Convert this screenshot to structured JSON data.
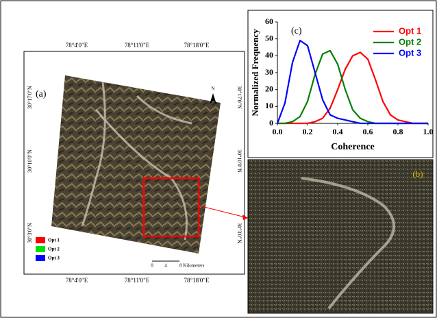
{
  "chart_data": {
    "type": "line",
    "panel_label": "(c)",
    "x_label": "Coherence",
    "y_label": "Normalized Frequency",
    "x": [
      0,
      0.05,
      0.1,
      0.15,
      0.2,
      0.25,
      0.3,
      0.35,
      0.4,
      0.45,
      0.5,
      0.55,
      0.6,
      0.65,
      0.7,
      0.75,
      0.8,
      0.85,
      0.9,
      0.95,
      1.0
    ],
    "series": [
      {
        "name": "Opt 1",
        "color": "#ff0000",
        "values": [
          0,
          0,
          0,
          0,
          0,
          1,
          3,
          9,
          20,
          32,
          40,
          42,
          38,
          26,
          13,
          5,
          2,
          1,
          0,
          0,
          0
        ]
      },
      {
        "name": "Opt 2",
        "color": "#008000",
        "values": [
          0,
          0,
          1,
          4,
          13,
          29,
          41,
          43,
          35,
          20,
          8,
          3,
          1,
          0,
          0,
          0,
          0,
          0,
          0,
          0,
          0
        ]
      },
      {
        "name": "Opt 3",
        "color": "#0000ff",
        "values": [
          0,
          12,
          36,
          49,
          46,
          30,
          14,
          5,
          3,
          2,
          1,
          0,
          0,
          0,
          0,
          0,
          0,
          0,
          0,
          0,
          0
        ]
      }
    ],
    "xlim": [
      0,
      1
    ],
    "ylim": [
      0,
      60
    ],
    "xticks": [
      {
        "value": 0,
        "label": "0.0"
      },
      {
        "value": 0.2,
        "label": "0.2"
      },
      {
        "value": 0.4,
        "label": "0.4"
      },
      {
        "value": 0.6,
        "label": "0.6"
      },
      {
        "value": 0.8,
        "label": "0.8"
      },
      {
        "value": 1,
        "label": "1.0"
      }
    ],
    "yticks": [
      0,
      10,
      20,
      30,
      40,
      50,
      60
    ],
    "legend": "upper right"
  },
  "map": {
    "panel_label": "(a)",
    "north": "N",
    "top_labels": [
      "78°4'0\"E",
      "78°11'0\"E",
      "78°18'0\"E"
    ],
    "bottom_labels": [
      "78°4'0\"E",
      "78°11'0\"E",
      "78°18'0\"E"
    ],
    "left_labels": [
      "30°17'0\"N",
      "30°10'0\"N",
      "30°3'0\"N"
    ],
    "right_labels": [
      "30°17'0\"N",
      "30°10'0\"N",
      "30°3'0\"N"
    ],
    "legend": [
      {
        "name": "Opt 1",
        "color": "#ff0000"
      },
      {
        "name": "Opt 2",
        "color": "#00e000"
      },
      {
        "name": "Opt 3",
        "color": "#0000ff"
      }
    ],
    "scale_labels": [
      "0",
      "4",
      "8 Kilometers"
    ]
  },
  "zoom": {
    "panel_label": "(b)"
  }
}
